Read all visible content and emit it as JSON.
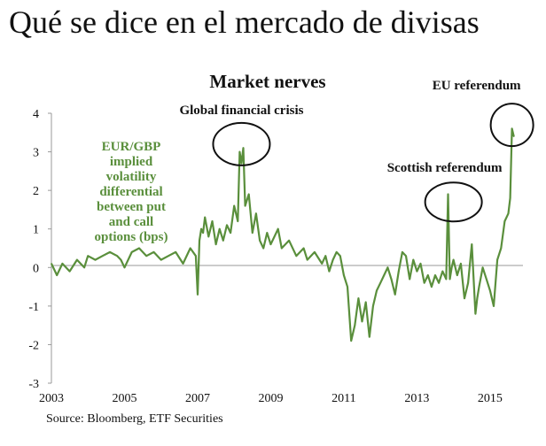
{
  "slide": {
    "title": "Qué se dice en el mercado de divisas"
  },
  "chart_data": {
    "type": "line",
    "title": "Market nerves",
    "ylabel": "EUR/GBP implied volatility differential between put and call options (bps)",
    "ylabel_lines": [
      "EUR/GBP",
      "implied",
      "volatility",
      "differential",
      "between put",
      "and call",
      "options (bps)"
    ],
    "xlabel": "",
    "xlim": [
      2003,
      2015.9
    ],
    "ylim": [
      -3,
      4
    ],
    "x_ticks": [
      "2003",
      "2005",
      "2007",
      "2009",
      "2011",
      "2013",
      "2015"
    ],
    "x_tick_values": [
      2003,
      2005,
      2007,
      2009,
      2011,
      2013,
      2015
    ],
    "y_ticks": [
      "4",
      "3",
      "2",
      "1",
      "0",
      "-1",
      "-2",
      "-3"
    ],
    "y_tick_values": [
      4,
      3,
      2,
      1,
      0,
      -1,
      -2,
      -3
    ],
    "colors": {
      "series": "#5a8f3c",
      "label": "#5a8f3c",
      "text": "#111111",
      "axis": "#999999"
    },
    "annotations": [
      {
        "text": "Global financial crisis",
        "x": 2008.2,
        "y": 3.2
      },
      {
        "text": "Scottish referendum",
        "x": 2014.0,
        "y": 1.7
      },
      {
        "text": "EU referendum",
        "x": 2015.6,
        "y": 3.7
      }
    ],
    "series": [
      {
        "name": "EUR/GBP implied volatility differential between put and call options (bps)",
        "x": [
          2003.0,
          2003.15,
          2003.3,
          2003.5,
          2003.7,
          2003.9,
          2004.0,
          2004.2,
          2004.4,
          2004.6,
          2004.8,
          2004.9,
          2005.0,
          2005.2,
          2005.4,
          2005.6,
          2005.8,
          2006.0,
          2006.2,
          2006.4,
          2006.6,
          2006.8,
          2006.95,
          2007.0,
          2007.05,
          2007.1,
          2007.15,
          2007.2,
          2007.3,
          2007.4,
          2007.5,
          2007.6,
          2007.7,
          2007.8,
          2007.9,
          2008.0,
          2008.1,
          2008.15,
          2008.2,
          2008.25,
          2008.3,
          2008.4,
          2008.5,
          2008.6,
          2008.7,
          2008.8,
          2008.9,
          2009.0,
          2009.1,
          2009.2,
          2009.3,
          2009.5,
          2009.7,
          2009.9,
          2010.0,
          2010.2,
          2010.4,
          2010.5,
          2010.6,
          2010.7,
          2010.8,
          2010.9,
          2011.0,
          2011.1,
          2011.2,
          2011.3,
          2011.4,
          2011.5,
          2011.6,
          2011.7,
          2011.8,
          2011.9,
          2012.0,
          2012.1,
          2012.2,
          2012.3,
          2012.4,
          2012.5,
          2012.6,
          2012.7,
          2012.8,
          2012.9,
          2013.0,
          2013.1,
          2013.2,
          2013.3,
          2013.4,
          2013.5,
          2013.6,
          2013.7,
          2013.8,
          2013.85,
          2013.9,
          2013.95,
          2014.0,
          2014.1,
          2014.2,
          2014.3,
          2014.4,
          2014.5,
          2014.6,
          2014.65,
          2014.7,
          2014.8,
          2014.9,
          2015.0,
          2015.1,
          2015.2,
          2015.3,
          2015.4,
          2015.5,
          2015.55,
          2015.6,
          2015.65
        ],
        "values": [
          0.1,
          -0.2,
          0.1,
          -0.1,
          0.2,
          0.0,
          0.3,
          0.2,
          0.3,
          0.4,
          0.3,
          0.2,
          0.0,
          0.4,
          0.5,
          0.3,
          0.4,
          0.2,
          0.3,
          0.4,
          0.1,
          0.5,
          0.3,
          -0.7,
          0.7,
          1.0,
          0.9,
          1.3,
          0.8,
          1.2,
          0.6,
          1.0,
          0.7,
          1.1,
          0.9,
          1.6,
          1.2,
          3.0,
          2.7,
          3.1,
          1.6,
          1.9,
          0.9,
          1.4,
          0.7,
          0.5,
          0.9,
          0.6,
          0.8,
          1.0,
          0.5,
          0.7,
          0.3,
          0.5,
          0.2,
          0.4,
          0.1,
          0.3,
          -0.1,
          0.2,
          0.4,
          0.3,
          -0.2,
          -0.5,
          -1.9,
          -1.5,
          -0.8,
          -1.4,
          -0.9,
          -1.8,
          -1.0,
          -0.6,
          -0.4,
          -0.2,
          0.0,
          -0.3,
          -0.7,
          -0.1,
          0.4,
          0.3,
          -0.3,
          0.2,
          -0.1,
          0.1,
          -0.4,
          -0.2,
          -0.5,
          -0.2,
          -0.4,
          -0.1,
          -0.3,
          1.9,
          -0.3,
          0.0,
          0.2,
          -0.2,
          0.1,
          -0.8,
          -0.4,
          0.6,
          -1.2,
          -0.8,
          -0.5,
          0.0,
          -0.3,
          -0.6,
          -1.0,
          0.2,
          0.5,
          1.2,
          1.4,
          1.8,
          3.6,
          3.4
        ]
      }
    ]
  },
  "source": "Source: Bloomberg, ETF Securities"
}
